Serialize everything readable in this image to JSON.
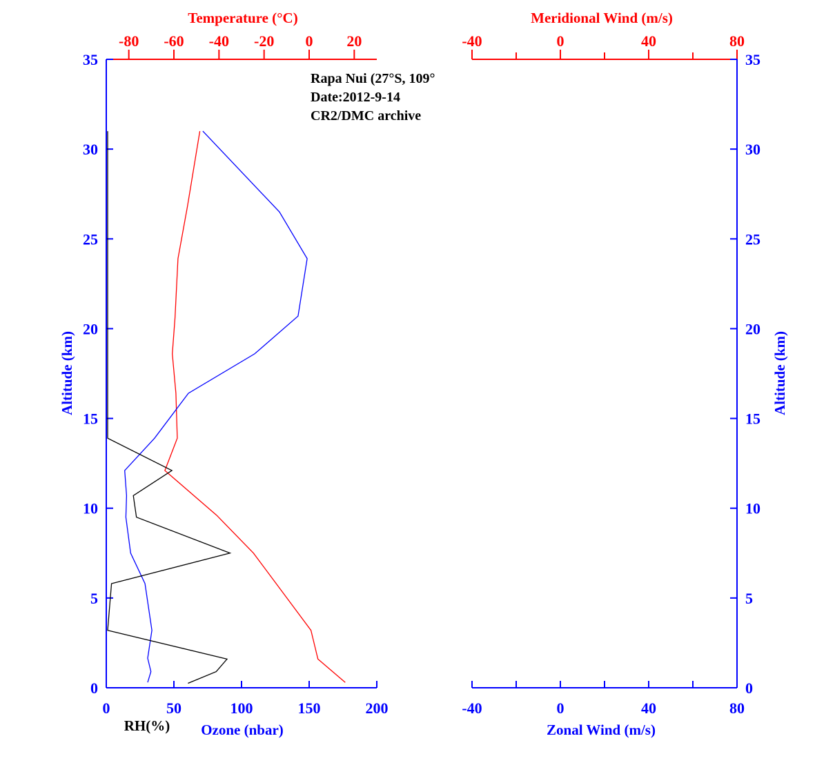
{
  "chart_data": [
    {
      "type": "line",
      "panel": "left",
      "annotation": [
        "Rapa Nui (27°S, 109°",
        "Date:2012-9-14",
        "CR2/DMC archive"
      ],
      "ylabel": "Altitude (km)",
      "ylim": [
        0,
        35
      ],
      "yticks": [
        "0",
        "5",
        "10",
        "15",
        "20",
        "25",
        "30",
        "35"
      ],
      "top_axis": {
        "label": "Temperature (°C)",
        "range": [
          -90,
          30
        ],
        "ticks": [
          "-80",
          "-60",
          "-40",
          "-20",
          "0",
          "20"
        ],
        "color": "#ff0000"
      },
      "bottom_axis": {
        "label": "Ozone (nbar)",
        "label2": "RH(%)",
        "range": [
          0,
          200
        ],
        "ticks": [
          "0",
          "50",
          "100",
          "150",
          "200"
        ],
        "color": "#0000ff"
      },
      "series": [
        {
          "key": "temperature",
          "color": "#ff0000",
          "axis": "top",
          "points": [
            [
              -48.5,
              31.0
            ],
            [
              -54,
              26.8
            ],
            [
              -58.2,
              23.9
            ],
            [
              -59.5,
              20.6
            ],
            [
              -60.7,
              18.6
            ],
            [
              -59.1,
              16.4
            ],
            [
              -58.5,
              13.9
            ],
            [
              -64,
              12.1
            ],
            [
              -41,
              9.6
            ],
            [
              -24.7,
              7.5
            ],
            [
              0.8,
              3.2
            ],
            [
              3.9,
              1.6
            ],
            [
              16,
              0.3
            ]
          ]
        },
        {
          "key": "ozone",
          "color": "#0000ff",
          "axis": "bottom",
          "points": [
            [
              71.4,
              31.0
            ],
            [
              128,
              26.5
            ],
            [
              148.5,
              23.9
            ],
            [
              141.8,
              20.7
            ],
            [
              109.7,
              18.6
            ],
            [
              60.7,
              16.4
            ],
            [
              35.7,
              13.9
            ],
            [
              13.6,
              12.1
            ],
            [
              15,
              10.7
            ],
            [
              14.5,
              9.5
            ],
            [
              18,
              7.5
            ],
            [
              28.6,
              5.8
            ],
            [
              33.7,
              3.2
            ],
            [
              30.6,
              1.65
            ],
            [
              33,
              0.9
            ],
            [
              30.6,
              0.3
            ]
          ]
        },
        {
          "key": "rh",
          "color": "#000000",
          "axis": "bottom",
          "points": [
            [
              1,
              31.0
            ],
            [
              1,
              13.9
            ],
            [
              48.5,
              12.1
            ],
            [
              20,
              10.7
            ],
            [
              22.3,
              9.5
            ],
            [
              91.5,
              7.5
            ],
            [
              3.9,
              5.8
            ],
            [
              1,
              3.2
            ],
            [
              89.3,
              1.6
            ],
            [
              81.3,
              0.9
            ],
            [
              60.4,
              0.25
            ]
          ]
        }
      ]
    },
    {
      "type": "line",
      "panel": "right",
      "ylabel": "Altitude (km)",
      "ylim": [
        0,
        35
      ],
      "yticks": [
        "0",
        "5",
        "10",
        "15",
        "20",
        "25",
        "30",
        "35"
      ],
      "top_axis": {
        "label": "Meridional Wind (m/s)",
        "range": [
          -40,
          80
        ],
        "ticks": [
          "-40",
          "0",
          "40",
          "80"
        ],
        "color": "#ff0000"
      },
      "bottom_axis": {
        "label": "Zonal Wind (m/s)",
        "range": [
          -40,
          80
        ],
        "ticks": [
          "-40",
          "0",
          "40",
          "80"
        ],
        "color": "#0000ff"
      },
      "series": []
    }
  ]
}
